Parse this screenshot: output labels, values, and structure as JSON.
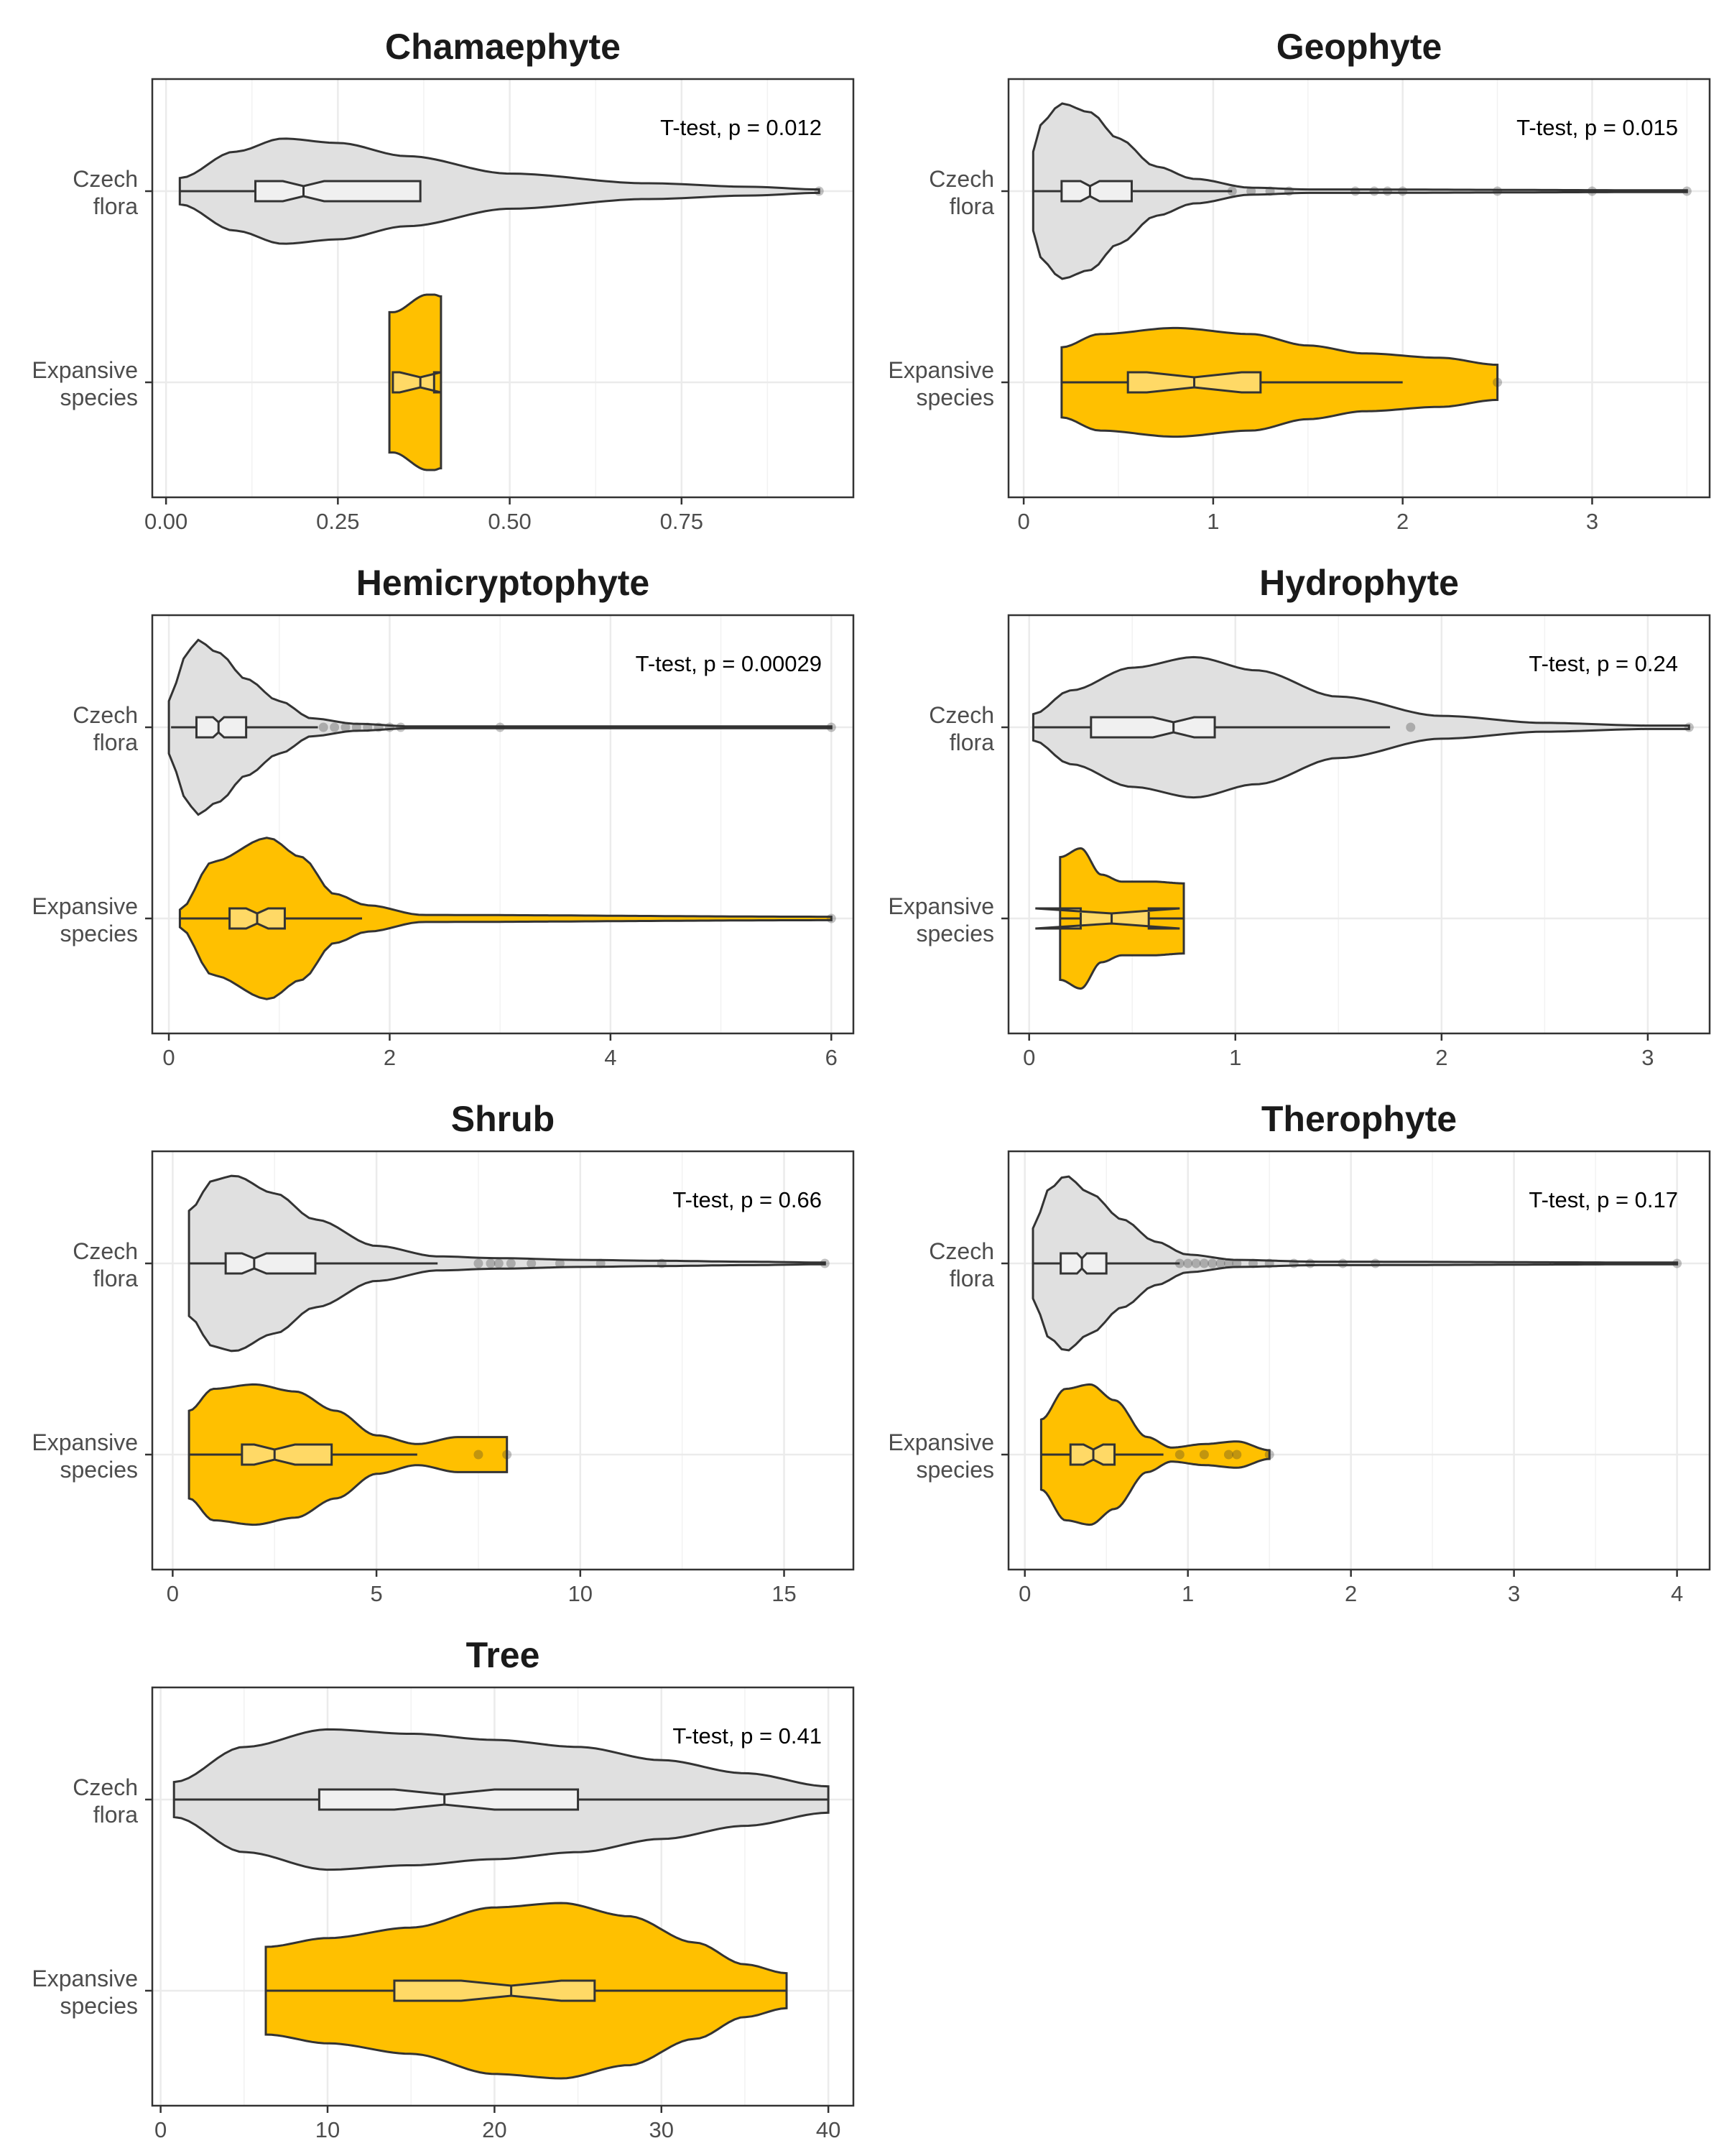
{
  "chart_data": [
    {
      "type": "violin",
      "title": "Chamaephyte",
      "annotation": "T-test, p = 0.012",
      "xlim": [
        -0.02,
        1.0
      ],
      "ticks": [
        0,
        0.25,
        0.5,
        0.75
      ],
      "tick_labels": [
        "0.00",
        "0.25",
        "0.50",
        "0.75"
      ],
      "categories": [
        "Czech flora",
        "Expansive species"
      ],
      "series": [
        {
          "category": "Czech flora",
          "fill": "#e0e0e0",
          "box": {
            "q1": 0.13,
            "median": 0.2,
            "q3": 0.37,
            "notch_lo": 0.17,
            "notch_hi": 0.23,
            "whisker_lo": 0.02,
            "whisker_hi": 0.37
          },
          "outliers": [
            0.95
          ],
          "density": [
            [
              0.02,
              0.15
            ],
            [
              0.1,
              0.45
            ],
            [
              0.17,
              0.6
            ],
            [
              0.25,
              0.55
            ],
            [
              0.35,
              0.4
            ],
            [
              0.5,
              0.2
            ],
            [
              0.7,
              0.09
            ],
            [
              0.85,
              0.05
            ],
            [
              0.95,
              0.02
            ]
          ]
        },
        {
          "category": "Expansive species",
          "fill": "#ffc000",
          "box": {
            "q1": 0.33,
            "median": 0.37,
            "q3": 0.39,
            "notch_lo": 0.34,
            "notch_hi": 0.4,
            "whisker_lo": 0.33,
            "whisker_hi": 0.39
          },
          "outliers": [],
          "density": [
            [
              0.325,
              0.8
            ],
            [
              0.33,
              0.8
            ],
            [
              0.38,
              1.0
            ],
            [
              0.39,
              1.0
            ],
            [
              0.4,
              0.98
            ]
          ]
        }
      ]
    },
    {
      "type": "violin",
      "title": "Geophyte",
      "annotation": "T-test, p = 0.015",
      "xlim": [
        -0.08,
        3.62
      ],
      "ticks": [
        0,
        1,
        2,
        3
      ],
      "tick_labels": [
        "0",
        "1",
        "2",
        "3"
      ],
      "categories": [
        "Czech flora",
        "Expansive species"
      ],
      "series": [
        {
          "category": "Czech flora",
          "fill": "#e0e0e0",
          "box": {
            "q1": 0.2,
            "median": 0.35,
            "q3": 0.57,
            "notch_lo": 0.3,
            "notch_hi": 0.4,
            "whisker_lo": 0.05,
            "whisker_hi": 1.1
          },
          "outliers": [
            1.1,
            1.2,
            1.3,
            1.4,
            1.75,
            1.85,
            1.92,
            2.0,
            2.5,
            3.0,
            3.5
          ],
          "density": [
            [
              0.05,
              0.45
            ],
            [
              0.1,
              0.8
            ],
            [
              0.2,
              1.0
            ],
            [
              0.35,
              0.9
            ],
            [
              0.5,
              0.6
            ],
            [
              0.7,
              0.28
            ],
            [
              0.9,
              0.14
            ],
            [
              1.2,
              0.04
            ],
            [
              1.5,
              0.02
            ],
            [
              3.5,
              0.01
            ]
          ]
        },
        {
          "category": "Expansive species",
          "fill": "#ffc000",
          "box": {
            "q1": 0.55,
            "median": 0.9,
            "q3": 1.25,
            "notch_lo": 0.65,
            "notch_hi": 1.15,
            "whisker_lo": 0.2,
            "whisker_hi": 2.0
          },
          "outliers": [
            2.5
          ],
          "density": [
            [
              0.2,
              0.4
            ],
            [
              0.4,
              0.55
            ],
            [
              0.8,
              0.62
            ],
            [
              1.2,
              0.55
            ],
            [
              1.5,
              0.42
            ],
            [
              1.8,
              0.33
            ],
            [
              2.2,
              0.28
            ],
            [
              2.5,
              0.2
            ]
          ]
        }
      ]
    },
    {
      "type": "violin",
      "title": "Hemicryptophyte",
      "annotation": "T-test, p = 0.00029",
      "xlim": [
        -0.15,
        6.2
      ],
      "ticks": [
        0,
        2,
        4,
        6
      ],
      "tick_labels": [
        "0",
        "2",
        "4",
        "6"
      ],
      "categories": [
        "Czech flora",
        "Expansive species"
      ],
      "series": [
        {
          "category": "Czech flora",
          "fill": "#e0e0e0",
          "box": {
            "q1": 0.25,
            "median": 0.45,
            "q3": 0.7,
            "notch_lo": 0.4,
            "notch_hi": 0.5,
            "whisker_lo": 0.02,
            "whisker_hi": 1.35
          },
          "outliers": [
            1.4,
            1.5,
            1.6,
            1.7,
            1.8,
            1.9,
            2.0,
            2.1,
            3.0,
            6.0
          ],
          "density": [
            [
              0.0,
              0.3
            ],
            [
              0.15,
              0.8
            ],
            [
              0.25,
              1.0
            ],
            [
              0.45,
              0.85
            ],
            [
              0.7,
              0.55
            ],
            [
              1.0,
              0.3
            ],
            [
              1.3,
              0.1
            ],
            [
              1.7,
              0.04
            ],
            [
              2.2,
              0.01
            ],
            [
              6.0,
              0.01
            ]
          ]
        },
        {
          "category": "Expansive species",
          "fill": "#ffc000",
          "box": {
            "q1": 0.55,
            "median": 0.8,
            "q3": 1.05,
            "notch_lo": 0.7,
            "notch_hi": 0.9,
            "whisker_lo": 0.1,
            "whisker_hi": 1.75
          },
          "outliers": [
            6.0
          ],
          "density": [
            [
              0.1,
              0.1
            ],
            [
              0.4,
              0.65
            ],
            [
              0.9,
              0.92
            ],
            [
              1.2,
              0.7
            ],
            [
              1.5,
              0.28
            ],
            [
              1.8,
              0.15
            ],
            [
              2.3,
              0.04
            ],
            [
              6.0,
              0.02
            ]
          ]
        }
      ]
    },
    {
      "type": "violin",
      "title": "Hydrophyte",
      "annotation": "T-test, p = 0.24",
      "xlim": [
        -0.1,
        3.3
      ],
      "ticks": [
        0,
        1,
        2,
        3
      ],
      "tick_labels": [
        "0",
        "1",
        "2",
        "3"
      ],
      "categories": [
        "Czech flora",
        "Expansive species"
      ],
      "series": [
        {
          "category": "Czech flora",
          "fill": "#e0e0e0",
          "box": {
            "q1": 0.3,
            "median": 0.7,
            "q3": 0.9,
            "notch_lo": 0.6,
            "notch_hi": 0.8,
            "whisker_lo": 0.02,
            "whisker_hi": 1.75
          },
          "outliers": [
            1.85,
            3.2
          ],
          "density": [
            [
              0.02,
              0.15
            ],
            [
              0.2,
              0.42
            ],
            [
              0.5,
              0.68
            ],
            [
              0.8,
              0.8
            ],
            [
              1.1,
              0.65
            ],
            [
              1.5,
              0.35
            ],
            [
              2.0,
              0.13
            ],
            [
              2.5,
              0.05
            ],
            [
              3.0,
              0.02
            ],
            [
              3.2,
              0.02
            ]
          ]
        },
        {
          "category": "Expansive species",
          "fill": "#ffc000",
          "box": {
            "q1": 0.25,
            "median": 0.4,
            "q3": 0.58,
            "notch_lo": 0.03,
            "notch_hi": 0.73,
            "whisker_lo": 0.15,
            "whisker_hi": 0.75
          },
          "outliers": [],
          "density": [
            [
              0.15,
              0.7
            ],
            [
              0.25,
              0.8
            ],
            [
              0.35,
              0.5
            ],
            [
              0.45,
              0.42
            ],
            [
              0.6,
              0.42
            ],
            [
              0.75,
              0.4
            ]
          ]
        }
      ]
    },
    {
      "type": "violin",
      "title": "Shrub",
      "annotation": "T-test, p = 0.66",
      "xlim": [
        -0.5,
        16.7
      ],
      "ticks": [
        0,
        5,
        10,
        15
      ],
      "tick_labels": [
        "0",
        "5",
        "10",
        "15"
      ],
      "categories": [
        "Czech flora",
        "Expansive species"
      ],
      "series": [
        {
          "category": "Czech flora",
          "fill": "#e0e0e0",
          "box": {
            "q1": 1.3,
            "median": 2.0,
            "q3": 3.5,
            "notch_lo": 1.7,
            "notch_hi": 2.3,
            "whisker_lo": 0.4,
            "whisker_hi": 6.5
          },
          "outliers": [
            7.5,
            7.8,
            8.0,
            8.3,
            8.8,
            9.5,
            10.5,
            12.0,
            16.0
          ],
          "density": [
            [
              0.4,
              0.6
            ],
            [
              1.0,
              0.95
            ],
            [
              1.5,
              1.0
            ],
            [
              2.5,
              0.8
            ],
            [
              3.5,
              0.5
            ],
            [
              5.0,
              0.2
            ],
            [
              6.5,
              0.08
            ],
            [
              8.0,
              0.06
            ],
            [
              10.0,
              0.04
            ],
            [
              12.0,
              0.03
            ],
            [
              14.0,
              0.02
            ],
            [
              16.0,
              0.01
            ]
          ]
        },
        {
          "category": "Expansive species",
          "fill": "#ffc000",
          "box": {
            "q1": 1.7,
            "median": 2.5,
            "q3": 3.9,
            "notch_lo": 2.0,
            "notch_hi": 3.0,
            "whisker_lo": 0.4,
            "whisker_hi": 6.0
          },
          "outliers": [
            7.5,
            8.2
          ],
          "density": [
            [
              0.4,
              0.5
            ],
            [
              1.0,
              0.75
            ],
            [
              2.0,
              0.8
            ],
            [
              3.0,
              0.72
            ],
            [
              4.0,
              0.5
            ],
            [
              5.0,
              0.22
            ],
            [
              6.0,
              0.12
            ],
            [
              7.0,
              0.2
            ],
            [
              8.2,
              0.2
            ]
          ]
        }
      ]
    },
    {
      "type": "violin",
      "title": "Therophyte",
      "annotation": "T-test, p = 0.17",
      "xlim": [
        -0.1,
        4.2
      ],
      "ticks": [
        0,
        1,
        2,
        3,
        4
      ],
      "tick_labels": [
        "0",
        "1",
        "2",
        "3",
        "4"
      ],
      "categories": [
        "Czech flora",
        "Expansive species"
      ],
      "series": [
        {
          "category": "Czech flora",
          "fill": "#e0e0e0",
          "box": {
            "q1": 0.22,
            "median": 0.35,
            "q3": 0.5,
            "notch_lo": 0.32,
            "notch_hi": 0.38,
            "whisker_lo": 0.05,
            "whisker_hi": 0.95
          },
          "outliers": [
            0.95,
            1.0,
            1.05,
            1.1,
            1.15,
            1.2,
            1.25,
            1.3,
            1.4,
            1.5,
            1.65,
            1.75,
            1.95,
            2.15,
            4.0
          ],
          "density": [
            [
              0.05,
              0.4
            ],
            [
              0.15,
              0.85
            ],
            [
              0.25,
              1.0
            ],
            [
              0.4,
              0.8
            ],
            [
              0.6,
              0.5
            ],
            [
              0.8,
              0.25
            ],
            [
              1.0,
              0.1
            ],
            [
              1.3,
              0.04
            ],
            [
              1.8,
              0.02
            ],
            [
              4.0,
              0.01
            ]
          ]
        },
        {
          "category": "Expansive species",
          "fill": "#ffc000",
          "box": {
            "q1": 0.28,
            "median": 0.42,
            "q3": 0.55,
            "notch_lo": 0.36,
            "notch_hi": 0.48,
            "whisker_lo": 0.1,
            "whisker_hi": 0.85
          },
          "outliers": [
            0.95,
            1.1,
            1.25,
            1.3,
            1.5
          ],
          "density": [
            [
              0.1,
              0.4
            ],
            [
              0.25,
              0.75
            ],
            [
              0.4,
              0.8
            ],
            [
              0.55,
              0.62
            ],
            [
              0.75,
              0.2
            ],
            [
              0.9,
              0.08
            ],
            [
              1.1,
              0.12
            ],
            [
              1.3,
              0.15
            ],
            [
              1.5,
              0.05
            ]
          ]
        }
      ]
    },
    {
      "type": "violin",
      "title": "Tree",
      "annotation": "T-test, p = 0.41",
      "xlim": [
        -0.5,
        41.5
      ],
      "ticks": [
        0,
        10,
        20,
        30,
        40
      ],
      "tick_labels": [
        "0",
        "10",
        "20",
        "30",
        "40"
      ],
      "categories": [
        "Czech flora",
        "Expansive species"
      ],
      "series": [
        {
          "category": "Czech flora",
          "fill": "#e0e0e0",
          "box": {
            "q1": 9.5,
            "median": 17.0,
            "q3": 25.0,
            "notch_lo": 14.0,
            "notch_hi": 20.0,
            "whisker_lo": 0.8,
            "whisker_hi": 40.0
          },
          "outliers": [],
          "density": [
            [
              0.8,
              0.2
            ],
            [
              5.0,
              0.6
            ],
            [
              10.0,
              0.8
            ],
            [
              15.0,
              0.75
            ],
            [
              20.0,
              0.68
            ],
            [
              25.0,
              0.6
            ],
            [
              30.0,
              0.45
            ],
            [
              35.0,
              0.3
            ],
            [
              40.0,
              0.15
            ]
          ]
        },
        {
          "category": "Expansive species",
          "fill": "#ffc000",
          "box": {
            "q1": 14.0,
            "median": 21.0,
            "q3": 26.0,
            "notch_lo": 18.0,
            "notch_hi": 24.0,
            "whisker_lo": 6.3,
            "whisker_hi": 37.5
          },
          "outliers": [],
          "density": [
            [
              6.3,
              0.5
            ],
            [
              10.0,
              0.6
            ],
            [
              15.0,
              0.72
            ],
            [
              20.0,
              0.95
            ],
            [
              24.0,
              1.0
            ],
            [
              28.0,
              0.85
            ],
            [
              32.0,
              0.55
            ],
            [
              35.0,
              0.3
            ],
            [
              37.5,
              0.2
            ]
          ]
        }
      ]
    }
  ]
}
